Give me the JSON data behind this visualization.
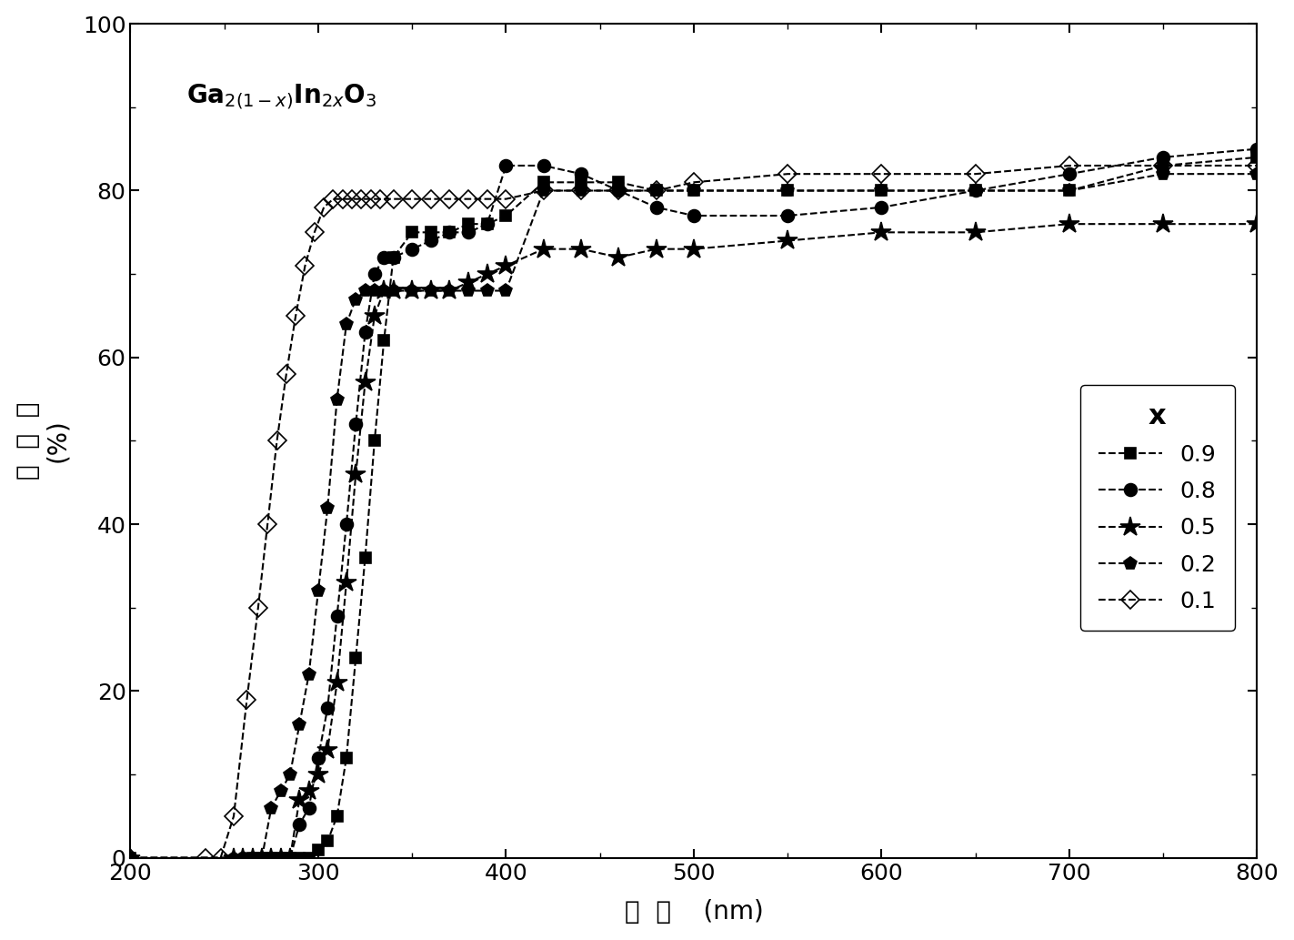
{
  "xlabel_zh": "波  长",
  "xlabel_en": "(nm)",
  "ylabel_zh": "透  过  率",
  "ylabel_en": "(%)",
  "xlim": [
    200,
    800
  ],
  "ylim": [
    0,
    100
  ],
  "xticks": [
    200,
    300,
    400,
    500,
    600,
    700,
    800
  ],
  "yticks": [
    0,
    20,
    40,
    60,
    80,
    100
  ],
  "formula": "Ga$_{2(1-x)}$In$_{2x}$O$_3$",
  "legend_title": "x",
  "series": [
    {
      "label": "0.9",
      "marker": "s",
      "fillstyle": "full",
      "x": [
        200,
        265,
        270,
        275,
        280,
        285,
        290,
        295,
        300,
        305,
        310,
        315,
        320,
        325,
        330,
        335,
        340,
        350,
        360,
        370,
        380,
        390,
        400,
        420,
        440,
        460,
        480,
        500,
        550,
        600,
        650,
        700,
        750,
        800
      ],
      "y": [
        0,
        0,
        0,
        0,
        0,
        0,
        0,
        0,
        1,
        2,
        5,
        12,
        24,
        36,
        50,
        62,
        72,
        75,
        75,
        75,
        76,
        76,
        77,
        81,
        81,
        81,
        80,
        80,
        80,
        80,
        80,
        80,
        83,
        84
      ]
    },
    {
      "label": "0.8",
      "marker": "o",
      "fillstyle": "full",
      "x": [
        200,
        260,
        265,
        270,
        275,
        280,
        285,
        290,
        295,
        300,
        305,
        310,
        315,
        320,
        325,
        330,
        335,
        340,
        350,
        360,
        370,
        380,
        390,
        400,
        420,
        440,
        460,
        480,
        500,
        550,
        600,
        650,
        700,
        750,
        800
      ],
      "y": [
        0,
        0,
        0,
        0,
        0,
        0,
        0,
        4,
        6,
        12,
        18,
        29,
        40,
        52,
        63,
        70,
        72,
        72,
        73,
        74,
        75,
        75,
        76,
        83,
        83,
        82,
        80,
        78,
        77,
        77,
        78,
        80,
        82,
        84,
        85
      ]
    },
    {
      "label": "0.5",
      "marker": "*",
      "fillstyle": "full",
      "x": [
        200,
        255,
        260,
        265,
        270,
        275,
        280,
        285,
        290,
        295,
        300,
        305,
        310,
        315,
        320,
        325,
        330,
        335,
        340,
        350,
        360,
        370,
        380,
        390,
        400,
        420,
        440,
        460,
        480,
        500,
        550,
        600,
        650,
        700,
        750,
        800
      ],
      "y": [
        0,
        0,
        0,
        0,
        0,
        0,
        0,
        0,
        7,
        8,
        10,
        13,
        21,
        33,
        46,
        57,
        65,
        68,
        68,
        68,
        68,
        68,
        69,
        70,
        71,
        73,
        73,
        72,
        73,
        73,
        74,
        75,
        75,
        76,
        76,
        76
      ]
    },
    {
      "label": "0.2",
      "marker": "p",
      "fillstyle": "full",
      "x": [
        200,
        255,
        260,
        265,
        270,
        275,
        280,
        285,
        290,
        295,
        300,
        305,
        310,
        315,
        320,
        325,
        330,
        335,
        340,
        350,
        360,
        370,
        380,
        390,
        400,
        420,
        440,
        460,
        480,
        500,
        550,
        600,
        650,
        700,
        750,
        800
      ],
      "y": [
        0,
        0,
        0,
        0,
        0,
        6,
        8,
        10,
        16,
        22,
        32,
        42,
        55,
        64,
        67,
        68,
        68,
        68,
        68,
        68,
        68,
        68,
        68,
        68,
        68,
        80,
        80,
        80,
        80,
        80,
        80,
        80,
        80,
        80,
        82,
        82
      ]
    },
    {
      "label": "0.1",
      "marker": "D",
      "fillstyle": "none",
      "x": [
        200,
        240,
        248,
        255,
        262,
        268,
        273,
        278,
        283,
        288,
        293,
        298,
        303,
        308,
        313,
        318,
        323,
        328,
        333,
        340,
        350,
        360,
        370,
        380,
        390,
        400,
        420,
        440,
        460,
        480,
        500,
        550,
        600,
        650,
        700,
        750,
        800
      ],
      "y": [
        0,
        0,
        0,
        5,
        19,
        30,
        40,
        50,
        58,
        65,
        71,
        75,
        78,
        79,
        79,
        79,
        79,
        79,
        79,
        79,
        79,
        79,
        79,
        79,
        79,
        79,
        80,
        80,
        80,
        80,
        81,
        82,
        82,
        82,
        83,
        83,
        83
      ]
    }
  ],
  "background_color": "#ffffff",
  "line_color": "#000000",
  "line_width": 1.5,
  "font_size_label": 20,
  "font_size_tick": 18,
  "font_size_legend": 18,
  "font_size_formula": 20
}
